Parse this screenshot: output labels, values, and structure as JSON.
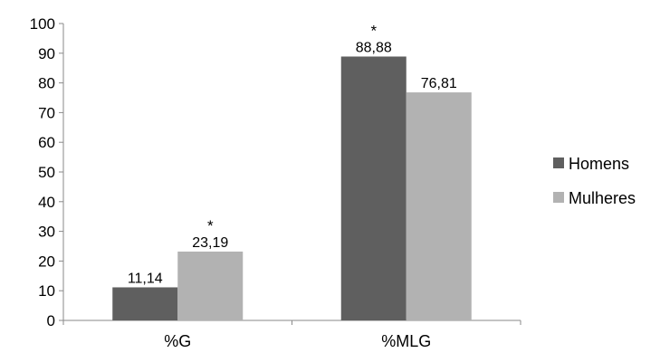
{
  "chart_data": {
    "type": "bar",
    "categories": [
      "%G",
      "%MLG"
    ],
    "series": [
      {
        "name": "Homens",
        "values": [
          11.14,
          88.88
        ],
        "labels": [
          "11,14",
          "88,88"
        ],
        "marks": [
          "",
          "*"
        ],
        "color": "#5f5f5f"
      },
      {
        "name": "Mulheres",
        "values": [
          23.19,
          76.81
        ],
        "labels": [
          "23,19",
          "76,81"
        ],
        "marks": [
          "*",
          ""
        ],
        "color": "#b2b2b2"
      }
    ],
    "ylim": [
      0,
      100
    ],
    "yticks": [
      "0",
      "10",
      "20",
      "30",
      "40",
      "50",
      "60",
      "70",
      "80",
      "90",
      "100"
    ],
    "grid": false,
    "legend": "right"
  }
}
